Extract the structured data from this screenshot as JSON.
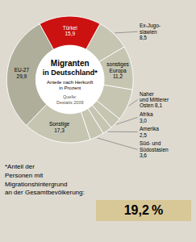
{
  "chart_data": {
    "type": "donut",
    "title": "Migranten\nin Deutschland*",
    "subtitle": "Anteile nach Herkunft\nin Prozent",
    "annotations": [
      "Quelle:\nDestatis 2009",
      "*Anteil der\nPersonen mit\nMigrationshintergrund\nan der Gesamtbevölkerung:",
      "19,2 %"
    ],
    "categories": [
      "Türkei\n15,9",
      "Ex-Jugo-\nslawien\n8,5",
      "sonstiges\nEuropa\n11,2",
      "Naher\nund Mittlerer\nOsten 8,1",
      "Afrika\n3,0",
      "Amerika\n2,5",
      "Süd- und\nSüdostasien\n3,6",
      "Sonstige\n17,3",
      "EU-27\n29,9"
    ],
    "values": [
      15.9,
      8.5,
      11.2,
      8.1,
      3.0,
      2.5,
      3.6,
      17.3,
      29.9
    ],
    "colors": [
      "#cc1111",
      "#c5c5b2",
      "#c5c5b2",
      "#c5c5b2",
      "#c5c5b2",
      "#c5c5b2",
      "#c5c5b2",
      "#c5c5b2",
      "#aeae9a"
    ]
  }
}
